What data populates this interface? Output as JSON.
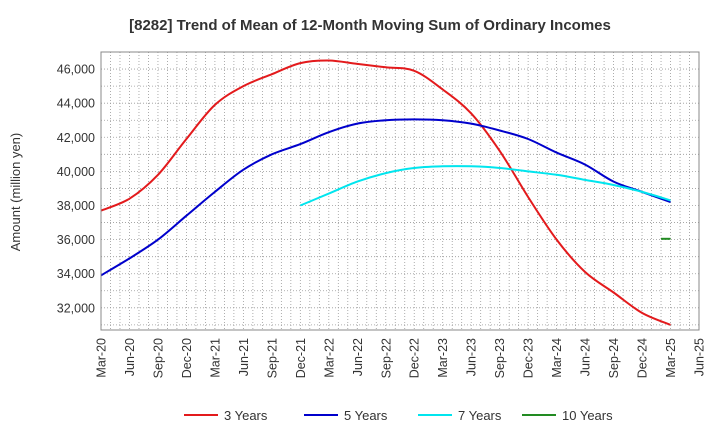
{
  "chart_data": {
    "type": "line",
    "title": "[8282]  Trend of Mean of 12-Month Moving Sum of Ordinary Incomes",
    "xlabel": "",
    "ylabel": "Amount (million yen)",
    "ylim": [
      30700,
      47000
    ],
    "yticks": [
      32000,
      34000,
      36000,
      38000,
      40000,
      42000,
      44000,
      46000
    ],
    "ytick_labels": [
      "32,000",
      "34,000",
      "36,000",
      "38,000",
      "40,000",
      "42,000",
      "44,000",
      "46,000"
    ],
    "xlim": [
      0,
      63
    ],
    "xticks": [
      0,
      3,
      6,
      9,
      12,
      15,
      18,
      21,
      24,
      27,
      30,
      33,
      36,
      39,
      42,
      45,
      48,
      51,
      54,
      57,
      60,
      63
    ],
    "xtick_labels": [
      "Mar-20",
      "Jun-20",
      "Sep-20",
      "Dec-20",
      "Mar-21",
      "Jun-21",
      "Sep-21",
      "Dec-21",
      "Mar-22",
      "Jun-22",
      "Sep-22",
      "Dec-22",
      "Mar-23",
      "Jun-23",
      "Sep-23",
      "Dec-23",
      "Mar-24",
      "Jun-24",
      "Sep-24",
      "Dec-24",
      "Mar-25",
      "Jun-25"
    ],
    "grid": true,
    "legend_position": "bottom",
    "series": [
      {
        "name": "3 Years",
        "color": "#e31a1c",
        "x": [
          0,
          3,
          6,
          9,
          12,
          15,
          18,
          21,
          24,
          27,
          30,
          33,
          36,
          39,
          42,
          45,
          48,
          51,
          54,
          57,
          60
        ],
        "values": [
          37700,
          38400,
          39800,
          41900,
          43900,
          45000,
          45700,
          46350,
          46500,
          46300,
          46100,
          45900,
          44800,
          43400,
          41200,
          38500,
          36000,
          34100,
          32900,
          31700,
          31000
        ]
      },
      {
        "name": "5 Years",
        "color": "#0000cc",
        "x": [
          0,
          3,
          6,
          9,
          12,
          15,
          18,
          21,
          24,
          27,
          30,
          33,
          36,
          39,
          42,
          45,
          48,
          51,
          54,
          57,
          60
        ],
        "values": [
          33900,
          34900,
          36000,
          37400,
          38800,
          40100,
          41000,
          41600,
          42300,
          42800,
          43000,
          43050,
          43000,
          42800,
          42400,
          41900,
          41100,
          40400,
          39400,
          38800,
          38200
        ]
      },
      {
        "name": "7 Years",
        "color": "#00e5ee",
        "x": [
          21,
          24,
          27,
          30,
          33,
          36,
          39,
          42,
          45,
          48,
          51,
          54,
          57,
          60
        ],
        "values": [
          38000,
          38700,
          39400,
          39900,
          40200,
          40300,
          40300,
          40200,
          40000,
          39800,
          39500,
          39200,
          38800,
          38300
        ]
      },
      {
        "name": "10 Years",
        "color": "#228b22",
        "x": [
          59,
          60
        ],
        "values": [
          36050,
          36050
        ]
      }
    ]
  }
}
